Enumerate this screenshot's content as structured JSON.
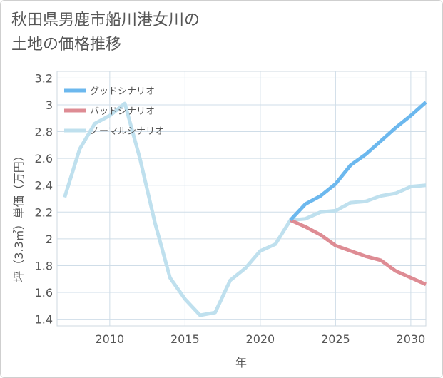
{
  "title": {
    "line1": "秋田県男鹿市船川港女川の",
    "line2": "土地の価格推移"
  },
  "chart_data": {
    "type": "line",
    "xlabel": "年",
    "ylabel": "坪（3.3㎡）単価（万円）",
    "xlim": [
      2006.5,
      2031
    ],
    "ylim": [
      1.35,
      3.25
    ],
    "x_ticks": [
      2010,
      2015,
      2020,
      2025,
      2030
    ],
    "y_ticks": [
      1.4,
      1.6,
      1.8,
      2,
      2.2,
      2.4,
      2.6,
      2.8,
      3,
      3.2
    ],
    "x_tick_labels": [
      "2010",
      "2015",
      "2020",
      "2025",
      "2030"
    ],
    "y_tick_labels": [
      "1.4",
      "1.6",
      "1.8",
      "2",
      "2.2",
      "2.4",
      "2.6",
      "2.8",
      "3",
      "3.2"
    ],
    "grid": true,
    "legend_position": "top-left",
    "series": [
      {
        "name": "グッドシナリオ",
        "color": "#6cb8ee",
        "points": [
          [
            2022,
            2.14
          ],
          [
            2023,
            2.26
          ],
          [
            2024,
            2.32
          ],
          [
            2025,
            2.41
          ],
          [
            2026,
            2.55
          ],
          [
            2027,
            2.63
          ],
          [
            2028,
            2.73
          ],
          [
            2029,
            2.83
          ],
          [
            2030,
            2.92
          ],
          [
            2031,
            3.02
          ]
        ]
      },
      {
        "name": "バッドシナリオ",
        "color": "#de8c94",
        "points": [
          [
            2022,
            2.14
          ],
          [
            2023,
            2.09
          ],
          [
            2024,
            2.03
          ],
          [
            2025,
            1.95
          ],
          [
            2026,
            1.91
          ],
          [
            2027,
            1.87
          ],
          [
            2028,
            1.84
          ],
          [
            2029,
            1.76
          ],
          [
            2030,
            1.71
          ],
          [
            2031,
            1.66
          ]
        ]
      },
      {
        "name": "ノーマルシナリオ",
        "color": "#bfe0ee",
        "points": [
          [
            2007,
            2.31
          ],
          [
            2008,
            2.67
          ],
          [
            2009,
            2.86
          ],
          [
            2010,
            2.92
          ],
          [
            2011,
            3.01
          ],
          [
            2012,
            2.6
          ],
          [
            2013,
            2.12
          ],
          [
            2014,
            1.71
          ],
          [
            2015,
            1.55
          ],
          [
            2016,
            1.43
          ],
          [
            2017,
            1.45
          ],
          [
            2018,
            1.69
          ],
          [
            2019,
            1.78
          ],
          [
            2020,
            1.91
          ],
          [
            2021,
            1.96
          ],
          [
            2022,
            2.14
          ],
          [
            2023,
            2.15
          ],
          [
            2024,
            2.2
          ],
          [
            2025,
            2.21
          ],
          [
            2026,
            2.27
          ],
          [
            2027,
            2.28
          ],
          [
            2028,
            2.32
          ],
          [
            2029,
            2.34
          ],
          [
            2030,
            2.39
          ],
          [
            2031,
            2.4
          ]
        ]
      }
    ]
  }
}
